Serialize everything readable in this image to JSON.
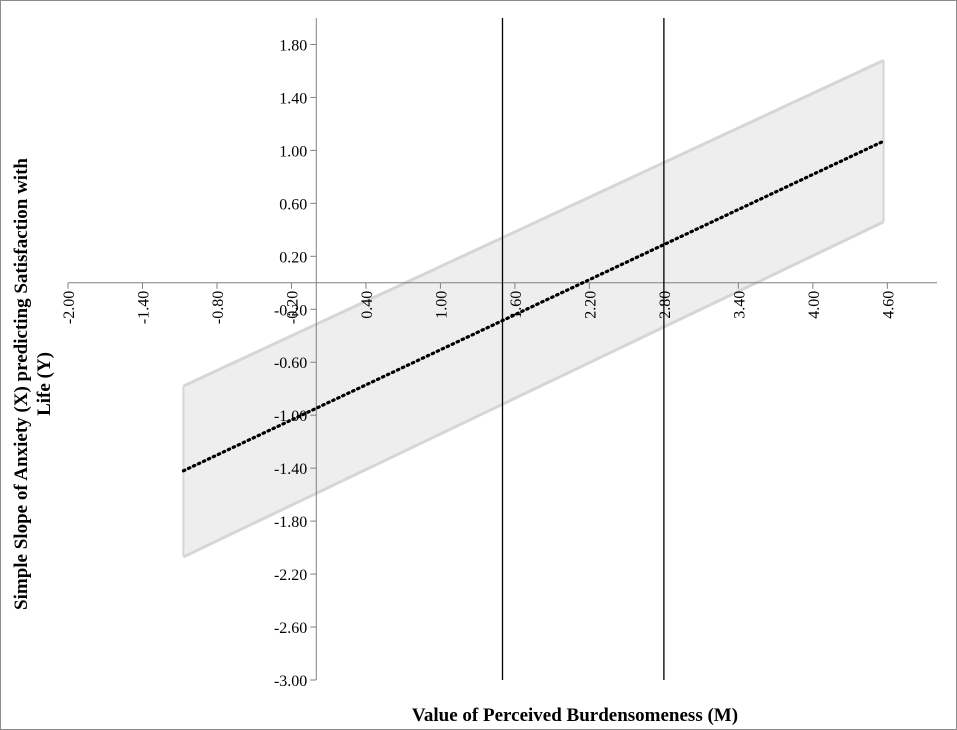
{
  "chart_data": {
    "type": "line",
    "title": "",
    "xlabel": "Value of Perceived Burdensomeness (M)",
    "ylabel_line1": "Simple Slope of Anxiety (X) predicting Satisfaction with",
    "ylabel_line2": "Life (Y)",
    "xlim": [
      -2.0,
      5.0
    ],
    "ylim": [
      -3.0,
      2.0
    ],
    "x_ticks": [
      -2.0,
      -1.4,
      -0.8,
      -0.2,
      0.4,
      1.0,
      1.6,
      2.2,
      2.8,
      3.4,
      4.0,
      4.6
    ],
    "x_tick_labels": [
      "-2.00",
      "-1.40",
      "-0.80",
      "-0.20",
      "0.40",
      "1.00",
      "1.60",
      "2.20",
      "2.80",
      "3.40",
      "4.00",
      "4.60"
    ],
    "y_ticks": [
      1.8,
      1.4,
      1.0,
      0.6,
      0.2,
      -0.2,
      -0.6,
      -1.0,
      -1.4,
      -1.8,
      -2.2,
      -2.6,
      -3.0
    ],
    "y_tick_labels": [
      "1.80",
      "1.40",
      "1.00",
      "0.60",
      "0.20",
      "-0.20",
      "-0.60",
      "-1.00",
      "-1.40",
      "-1.80",
      "-2.20",
      "-2.60",
      "-3.00"
    ],
    "y_axis_at_x": 0.0,
    "x_axis_at_y": 0.0,
    "series": [
      {
        "name": "",
        "style": "dotted",
        "x": [
          -1.07,
          4.57
        ],
        "y": [
          -1.42,
          1.07
        ]
      }
    ],
    "confidence_band": {
      "x": [
        -1.07,
        4.57
      ],
      "lower": [
        -2.07,
        0.46
      ],
      "upper": [
        -0.78,
        1.68
      ]
    },
    "reference_lines_x": [
      1.5,
      2.8
    ],
    "grid": false,
    "legend": "none",
    "colors": {
      "band_fill": "#eeeeee",
      "band_edge": "#d6d6d6",
      "line": "#000000",
      "axis": "#808080"
    }
  }
}
